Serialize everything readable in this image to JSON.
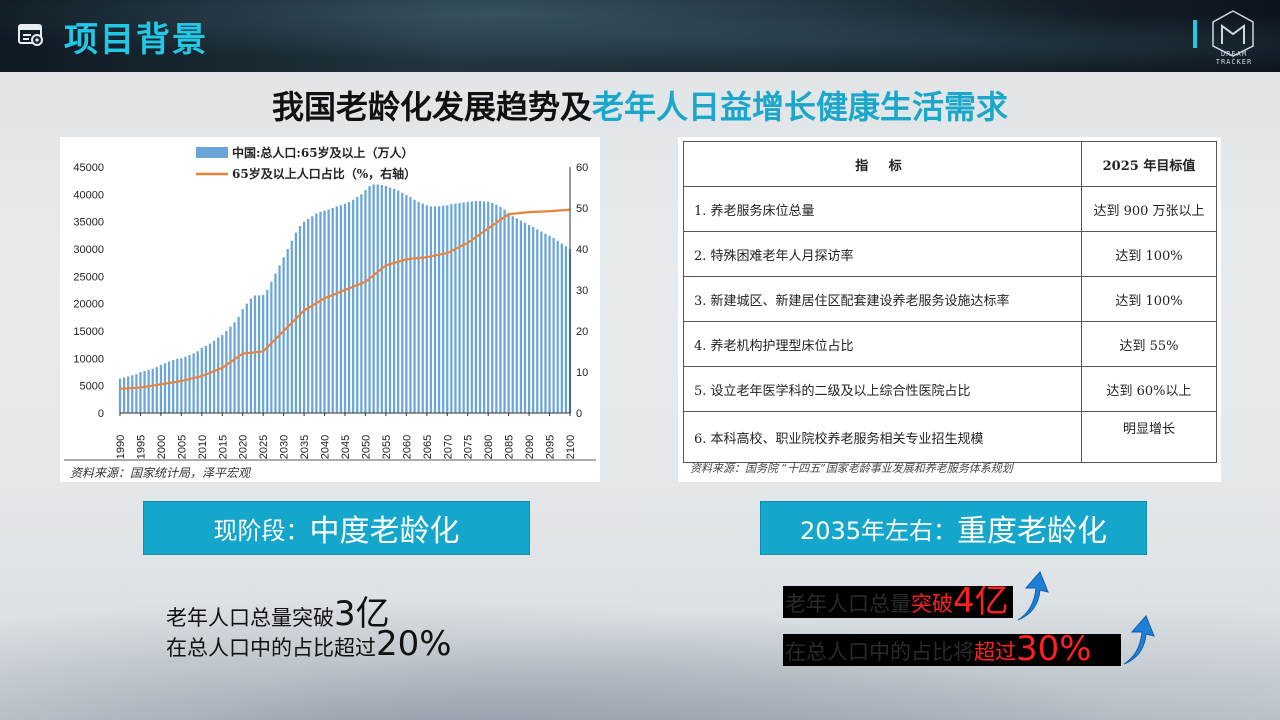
{
  "header": {
    "title": "项目背景",
    "logo_text": "DREAM TRACKER"
  },
  "main_title": {
    "part1": "我国老龄化发展趋势及",
    "part2": "老年人日益增长健康生活需求"
  },
  "chart_data": {
    "type": "bar+line",
    "legend": [
      {
        "name": "中国:总人口:65岁及以上（万人）",
        "type": "bar"
      },
      {
        "name": "65岁及以上人口占比（%，右轴）",
        "type": "line"
      }
    ],
    "years": [
      1990,
      1991,
      1992,
      1993,
      1994,
      1995,
      1996,
      1997,
      1998,
      1999,
      2000,
      2001,
      2002,
      2003,
      2004,
      2005,
      2006,
      2007,
      2008,
      2009,
      2010,
      2011,
      2012,
      2013,
      2014,
      2015,
      2016,
      2017,
      2018,
      2019,
      2020,
      2021,
      2022,
      2023,
      2024,
      2025,
      2026,
      2027,
      2028,
      2029,
      2030,
      2031,
      2032,
      2033,
      2034,
      2035,
      2036,
      2037,
      2038,
      2039,
      2040,
      2041,
      2042,
      2043,
      2044,
      2045,
      2046,
      2047,
      2048,
      2049,
      2050,
      2051,
      2052,
      2053,
      2054,
      2055,
      2056,
      2057,
      2058,
      2059,
      2060,
      2061,
      2062,
      2063,
      2064,
      2065,
      2066,
      2067,
      2068,
      2069,
      2070,
      2071,
      2072,
      2073,
      2074,
      2075,
      2076,
      2077,
      2078,
      2079,
      2080,
      2081,
      2082,
      2083,
      2084,
      2085,
      2086,
      2087,
      2088,
      2089,
      2090,
      2091,
      2092,
      2093,
      2094,
      2095,
      2096,
      2097,
      2098,
      2099,
      2100
    ],
    "population_65plus": [
      6300,
      6500,
      6700,
      6900,
      7100,
      7500,
      7700,
      7900,
      8100,
      8400,
      8800,
      9100,
      9400,
      9700,
      9900,
      10000,
      10300,
      10600,
      10900,
      11300,
      11900,
      12300,
      12700,
      13200,
      13800,
      14300,
      15000,
      15800,
      16600,
      17600,
      19000,
      20000,
      20900,
      21500,
      21500,
      21600,
      22500,
      24000,
      25500,
      27000,
      28500,
      30000,
      31500,
      33000,
      34200,
      35000,
      35500,
      36000,
      36500,
      36800,
      37000,
      37200,
      37500,
      37800,
      38000,
      38300,
      38600,
      39000,
      39500,
      40000,
      40800,
      41500,
      41800,
      41800,
      41700,
      41500,
      41200,
      41000,
      40700,
      40300,
      39900,
      39500,
      39000,
      38600,
      38300,
      38000,
      37800,
      37800,
      37800,
      37900,
      38000,
      38200,
      38300,
      38400,
      38500,
      38600,
      38700,
      38800,
      38800,
      38700,
      38600,
      38400,
      38100,
      37700,
      37200,
      36600,
      36000,
      35600,
      35200,
      34800,
      34400,
      34000,
      33600,
      33200,
      32800,
      32400,
      32000,
      31500,
      31000,
      30500,
      30000
    ],
    "share_pct_right_axis_keypoints": {
      "1990": 5.9,
      "1995": 6.2,
      "2000": 7.0,
      "2005": 7.8,
      "2010": 9.0,
      "2015": 11.0,
      "2020": 14.5,
      "2025": 15.0,
      "2030": 20.0,
      "2035": 25.0,
      "2040": 28.0,
      "2045": 30.0,
      "2050": 32.0,
      "2055": 36.0,
      "2060": 37.5,
      "2065": 38.0,
      "2070": 39.0,
      "2075": 41.5,
      "2080": 45.0,
      "2085": 48.5,
      "2090": 49.0,
      "2095": 49.2,
      "2100": 49.6
    },
    "left_axis": {
      "ylim": [
        0,
        45000
      ],
      "ticks": [
        "45000",
        "40000",
        "35000",
        "30000",
        "25000",
        "20000",
        "15000",
        "10000",
        "5000",
        "0"
      ]
    },
    "right_axis": {
      "ylim": [
        0,
        60
      ],
      "ticks": [
        "60",
        "50",
        "40",
        "30",
        "20",
        "10",
        "0"
      ]
    },
    "x_ticks": [
      "1990",
      "1995",
      "2000",
      "2005",
      "2010",
      "2015",
      "2020",
      "2025",
      "2030",
      "2035",
      "2040",
      "2045",
      "2050",
      "2055",
      "2060",
      "2065",
      "2070",
      "2075",
      "2080",
      "2085",
      "2090",
      "2095",
      "2100"
    ],
    "source": "资料来源：国家统计局，泽平宏观",
    "colors": {
      "bar": "#6aa5d8",
      "line": "#e9823a"
    }
  },
  "table": {
    "headers": [
      "指 标",
      "2025 年目标值"
    ],
    "rows": [
      {
        "indicator": "1. 养老服务床位总量",
        "target": "达到 900 万张以上"
      },
      {
        "indicator": "2. 特殊困难老年人月探访率",
        "target": "达到 100%"
      },
      {
        "indicator": "3. 新建城区、新建居住区配套建设养老服务设施达标率",
        "target": "达到 100%"
      },
      {
        "indicator": "4. 养老机构护理型床位占比",
        "target": "达到 55%"
      },
      {
        "indicator": "5. 设立老年医学科的二级及以上综合性医院占比",
        "target": "达到 60%以上"
      },
      {
        "indicator": "6. 本科高校、职业院校养老服务相关专业招生规模",
        "target": "明显增长"
      }
    ],
    "source": "资料来源：国务院 “十四五”国家老龄事业发展和养老服务体系规划"
  },
  "left_stage": {
    "prefix": "现阶段：",
    "label": "中度老龄化"
  },
  "right_stage": {
    "prefix": "2035年左右：",
    "label": "重度老龄化"
  },
  "left_stats": [
    {
      "text": "老年人口总量突破",
      "big": "3亿"
    },
    {
      "text": "在总人口中的占比超过",
      "big": "20%"
    }
  ],
  "right_stats": [
    {
      "text": "老年人口总量",
      "red": "突破",
      "big": "4亿"
    },
    {
      "text": "在总人口中的占比将",
      "red": "超过",
      "big": "30%"
    }
  ],
  "colors": {
    "accent": "#22c8e6",
    "stage_bg": "#14a7cb",
    "highlight_red": "#ff2020",
    "arrow": "#1e7fd8"
  }
}
